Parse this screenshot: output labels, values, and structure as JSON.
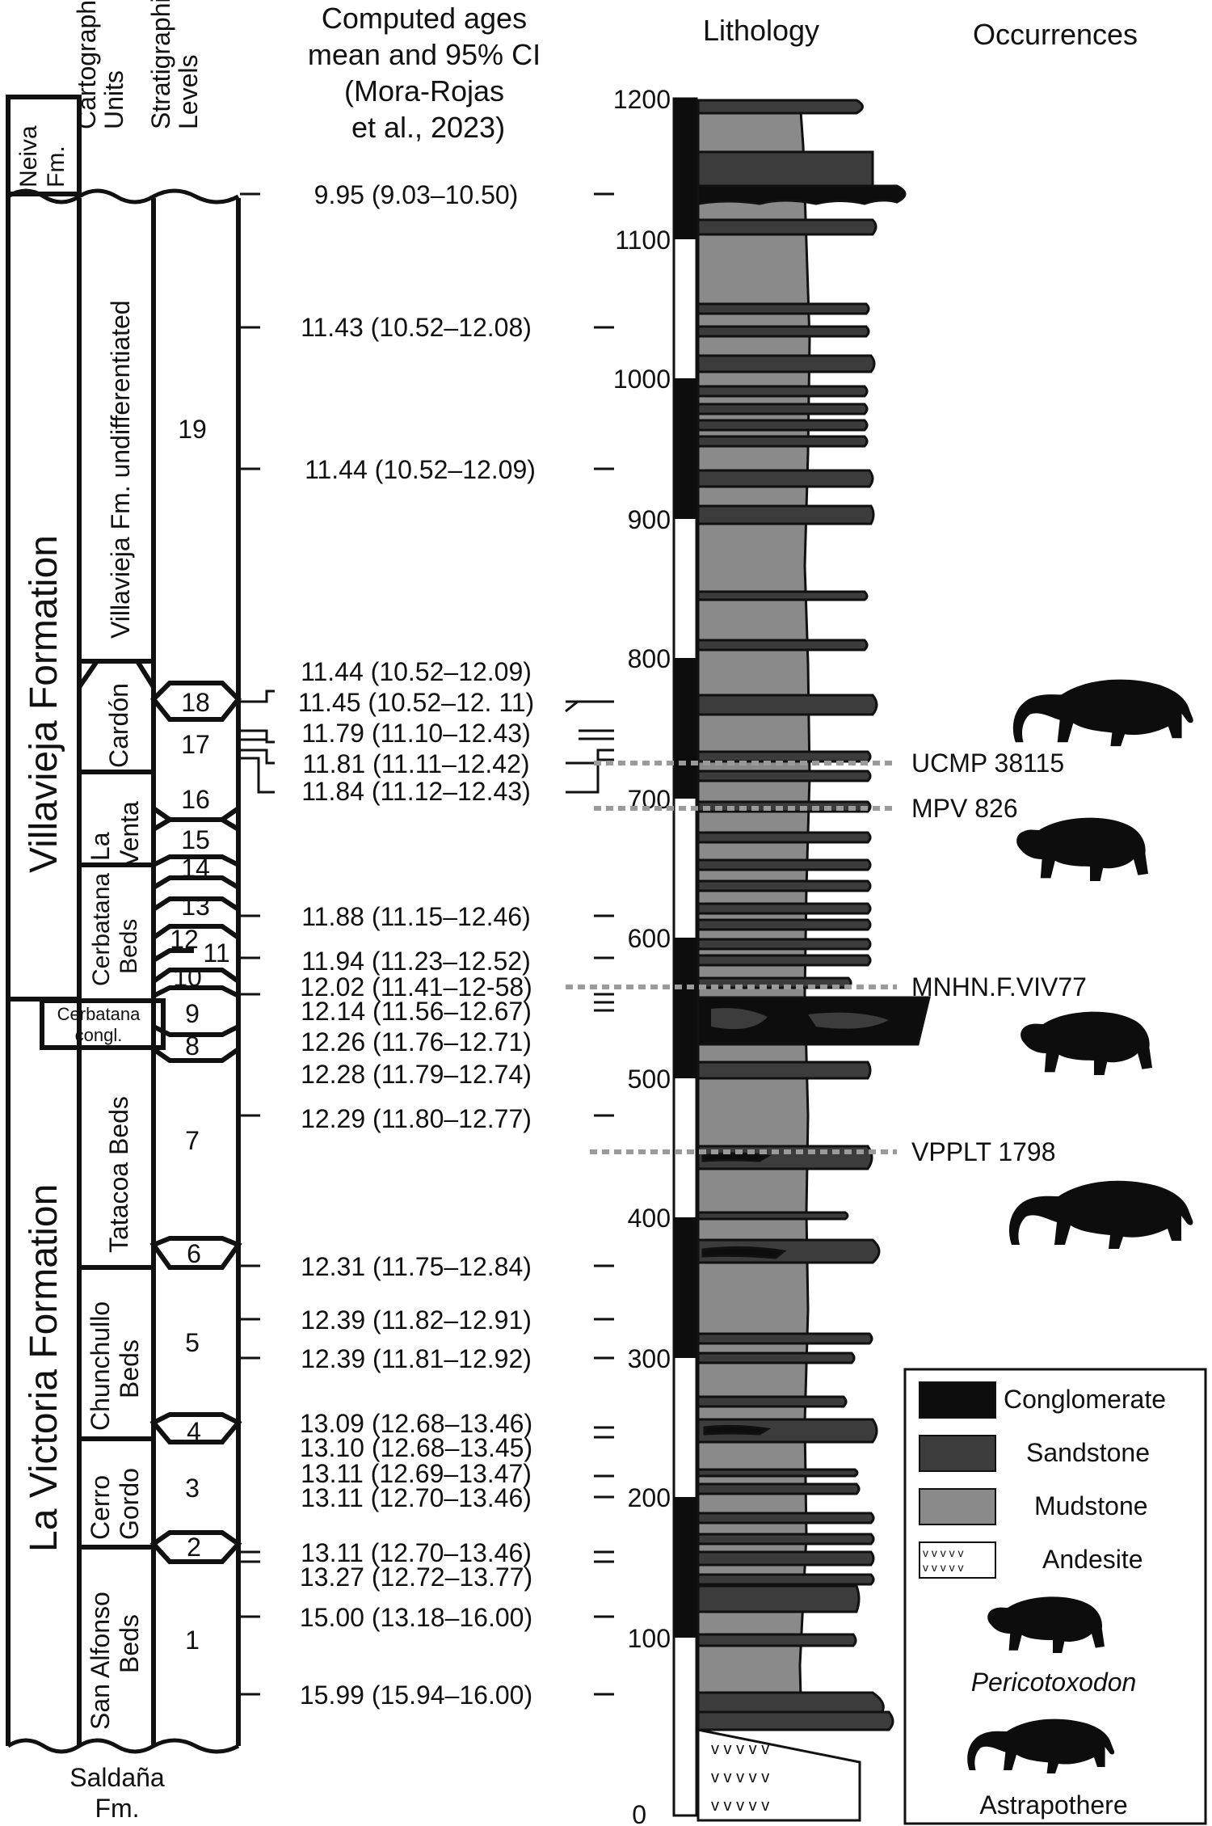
{
  "headers": {
    "cartographic_units": [
      "Cartographic",
      "Units"
    ],
    "stratigraphic_levels": [
      "Stratigraphic",
      "Levels"
    ],
    "computed_ages": [
      "Computed ages",
      "mean and 95% CI",
      "(Mora-Rojas",
      "et al., 2023)"
    ],
    "lithology": "Lithology",
    "occurrences": "Occurrences"
  },
  "formations": {
    "neiva": [
      "Neiva",
      "Fm."
    ],
    "villavieja": "Villavieja Formation",
    "la_victoria": "La Victoria Formation",
    "saldana": [
      "Saldaña",
      "Fm."
    ]
  },
  "cartographic_units": [
    {
      "id": "villavieja-undiff",
      "label": [
        "Villavieja Fm. undifferentiated"
      ]
    },
    {
      "id": "cardon",
      "label": [
        "Cardón"
      ]
    },
    {
      "id": "la-venta",
      "label": [
        "La",
        "Venta"
      ]
    },
    {
      "id": "cerbatana-beds",
      "label": [
        "Cerbatana",
        "Beds"
      ]
    },
    {
      "id": "cerbatana-congl",
      "label": [
        "Cerbatana",
        "congl."
      ]
    },
    {
      "id": "tatacoa-beds",
      "label": [
        "Tatacoa Beds"
      ]
    },
    {
      "id": "chunchullo-beds",
      "label": [
        "Chunchullo",
        "Beds"
      ]
    },
    {
      "id": "cerro-gordo",
      "label": [
        "Cerro",
        "Gordo"
      ]
    },
    {
      "id": "san-alfonso-beds",
      "label": [
        "San Alfonso",
        "Beds"
      ]
    }
  ],
  "levels": [
    "19",
    "18",
    "17",
    "16",
    "15",
    "14",
    "13",
    "12",
    "11",
    "10",
    "9",
    "8",
    "7",
    "6",
    "5",
    "4",
    "3",
    "2",
    "1"
  ],
  "ages": [
    "9.95 (9.03–10.50)",
    "11.43 (10.52–12.08)",
    "11.44 (10.52–12.09)",
    "11.44 (10.52–12.09)",
    "11.45 (10.52–12. 11)",
    "11.79 (11.10–12.43)",
    "11.81 (11.11–12.42)",
    "11.84 (11.12–12.43)",
    "11.88 (11.15–12.46)",
    "11.94 (11.23–12.52)",
    "12.02 (11.41–12-58)",
    "12.14 (11.56–12.67)",
    "12.26 (11.76–12.71)",
    "12.28 (11.79–12.74)",
    "12.29 (11.80–12.77)",
    "12.31 (11.75–12.84)",
    "12.39 (11.82–12.91)",
    "12.39 (11.81–12.92)",
    "13.09 (12.68–13.46)",
    "13.10 (12.68–13.45)",
    "13.11 (12.69–13.47)",
    "13.11 (12.70–13.46)",
    "13.11 (12.70–13.46)",
    "13.27 (12.72–13.77)",
    "15.00 (13.18–16.00)",
    "15.99 (15.94–16.00)"
  ],
  "scale_ticks": [
    "1200",
    "1100",
    "1000",
    "900",
    "800",
    "700",
    "600",
    "500",
    "400",
    "300",
    "200",
    "100",
    "0"
  ],
  "specimens": [
    "UCMP 38115",
    "MPV 826",
    "MNHN.F.VIV77",
    "VPPLT 1798"
  ],
  "legend": {
    "items": [
      "Conglomerate",
      "Sandstone",
      "Mudstone",
      "Andesite"
    ],
    "pericotoxodon": "Pericotoxodon",
    "astrapothere": "Astrapothere",
    "andesite_glyph": "v v v v v"
  },
  "colors": {
    "conglomerate": "#0d0d0d",
    "sandstone": "#3c3c3c",
    "mudstone": "#8a8a8a",
    "dotted": "#9a9a9a"
  },
  "icons": {
    "astrapothere": "astrapothere-silhouette-icon",
    "pericotoxodon": "pericotoxodon-silhouette-icon"
  }
}
